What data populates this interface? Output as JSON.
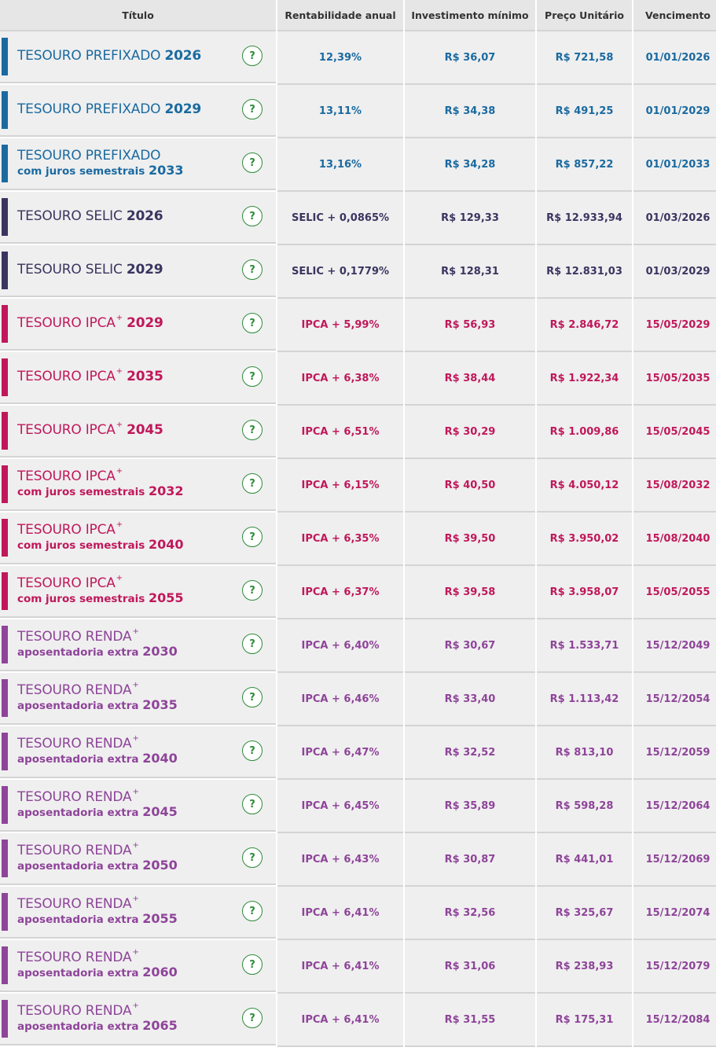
{
  "headers": [
    "Título",
    "Rentabilidade anual",
    "Investimento mínimo",
    "Preço Unitário",
    "Vencimento"
  ],
  "help_glyph": "?",
  "colors": {
    "prefixado": "#1a6aa0",
    "selic": "#3a3560",
    "ipca": "#c0185a",
    "renda": "#8e4499",
    "help": "#2e8b3a"
  },
  "rows": [
    {
      "type": "prefixado",
      "name": "TESOURO PREFIXADO",
      "plus": "",
      "sub": "",
      "year": "2026",
      "rate": "12,39%",
      "min": "R$ 36,07",
      "price": "R$ 721,58",
      "due": "01/01/2026"
    },
    {
      "type": "prefixado",
      "name": "TESOURO PREFIXADO",
      "plus": "",
      "sub": "",
      "year": "2029",
      "rate": "13,11%",
      "min": "R$ 34,38",
      "price": "R$ 491,25",
      "due": "01/01/2029"
    },
    {
      "type": "prefixado",
      "name": "TESOURO PREFIXADO",
      "plus": "",
      "sub": "com juros semestrais",
      "year": "2033",
      "rate": "13,16%",
      "min": "R$ 34,28",
      "price": "R$ 857,22",
      "due": "01/01/2033"
    },
    {
      "type": "selic",
      "name": "TESOURO SELIC",
      "plus": "",
      "sub": "",
      "year": "2026",
      "rate": "SELIC + 0,0865%",
      "min": "R$ 129,33",
      "price": "R$ 12.933,94",
      "due": "01/03/2026"
    },
    {
      "type": "selic",
      "name": "TESOURO SELIC",
      "plus": "",
      "sub": "",
      "year": "2029",
      "rate": "SELIC + 0,1779%",
      "min": "R$ 128,31",
      "price": "R$ 12.831,03",
      "due": "01/03/2029"
    },
    {
      "type": "ipca",
      "name": "TESOURO IPCA",
      "plus": "+",
      "sub": "",
      "year": "2029",
      "rate": "IPCA + 5,99%",
      "min": "R$ 56,93",
      "price": "R$ 2.846,72",
      "due": "15/05/2029"
    },
    {
      "type": "ipca",
      "name": "TESOURO IPCA",
      "plus": "+",
      "sub": "",
      "year": "2035",
      "rate": "IPCA + 6,38%",
      "min": "R$ 38,44",
      "price": "R$ 1.922,34",
      "due": "15/05/2035"
    },
    {
      "type": "ipca",
      "name": "TESOURO IPCA",
      "plus": "+",
      "sub": "",
      "year": "2045",
      "rate": "IPCA + 6,51%",
      "min": "R$ 30,29",
      "price": "R$ 1.009,86",
      "due": "15/05/2045"
    },
    {
      "type": "ipca",
      "name": "TESOURO IPCA",
      "plus": "+",
      "sub": "com juros semestrais",
      "year": "2032",
      "rate": "IPCA + 6,15%",
      "min": "R$ 40,50",
      "price": "R$ 4.050,12",
      "due": "15/08/2032"
    },
    {
      "type": "ipca",
      "name": "TESOURO IPCA",
      "plus": "+",
      "sub": "com juros semestrais",
      "year": "2040",
      "rate": "IPCA + 6,35%",
      "min": "R$ 39,50",
      "price": "R$ 3.950,02",
      "due": "15/08/2040"
    },
    {
      "type": "ipca",
      "name": "TESOURO IPCA",
      "plus": "+",
      "sub": "com juros semestrais",
      "year": "2055",
      "rate": "IPCA + 6,37%",
      "min": "R$ 39,58",
      "price": "R$ 3.958,07",
      "due": "15/05/2055"
    },
    {
      "type": "renda",
      "name": "TESOURO RENDA",
      "plus": "+",
      "sub": "aposentadoria extra",
      "year": "2030",
      "rate": "IPCA + 6,40%",
      "min": "R$ 30,67",
      "price": "R$ 1.533,71",
      "due": "15/12/2049"
    },
    {
      "type": "renda",
      "name": "TESOURO RENDA",
      "plus": "+",
      "sub": "aposentadoria extra",
      "year": "2035",
      "rate": "IPCA + 6,46%",
      "min": "R$ 33,40",
      "price": "R$ 1.113,42",
      "due": "15/12/2054"
    },
    {
      "type": "renda",
      "name": "TESOURO RENDA",
      "plus": "+",
      "sub": "aposentadoria extra",
      "year": "2040",
      "rate": "IPCA + 6,47%",
      "min": "R$ 32,52",
      "price": "R$ 813,10",
      "due": "15/12/2059"
    },
    {
      "type": "renda",
      "name": "TESOURO RENDA",
      "plus": "+",
      "sub": "aposentadoria extra",
      "year": "2045",
      "rate": "IPCA + 6,45%",
      "min": "R$ 35,89",
      "price": "R$ 598,28",
      "due": "15/12/2064"
    },
    {
      "type": "renda",
      "name": "TESOURO RENDA",
      "plus": "+",
      "sub": "aposentadoria extra",
      "year": "2050",
      "rate": "IPCA + 6,43%",
      "min": "R$ 30,87",
      "price": "R$ 441,01",
      "due": "15/12/2069"
    },
    {
      "type": "renda",
      "name": "TESOURO RENDA",
      "plus": "+",
      "sub": "aposentadoria extra",
      "year": "2055",
      "rate": "IPCA + 6,41%",
      "min": "R$ 32,56",
      "price": "R$ 325,67",
      "due": "15/12/2074"
    },
    {
      "type": "renda",
      "name": "TESOURO RENDA",
      "plus": "+",
      "sub": "aposentadoria extra",
      "year": "2060",
      "rate": "IPCA + 6,41%",
      "min": "R$ 31,06",
      "price": "R$ 238,93",
      "due": "15/12/2079"
    },
    {
      "type": "renda",
      "name": "TESOURO RENDA",
      "plus": "+",
      "sub": "aposentadoria extra",
      "year": "2065",
      "rate": "IPCA + 6,41%",
      "min": "R$ 31,55",
      "price": "R$ 175,31",
      "due": "15/12/2084"
    }
  ]
}
